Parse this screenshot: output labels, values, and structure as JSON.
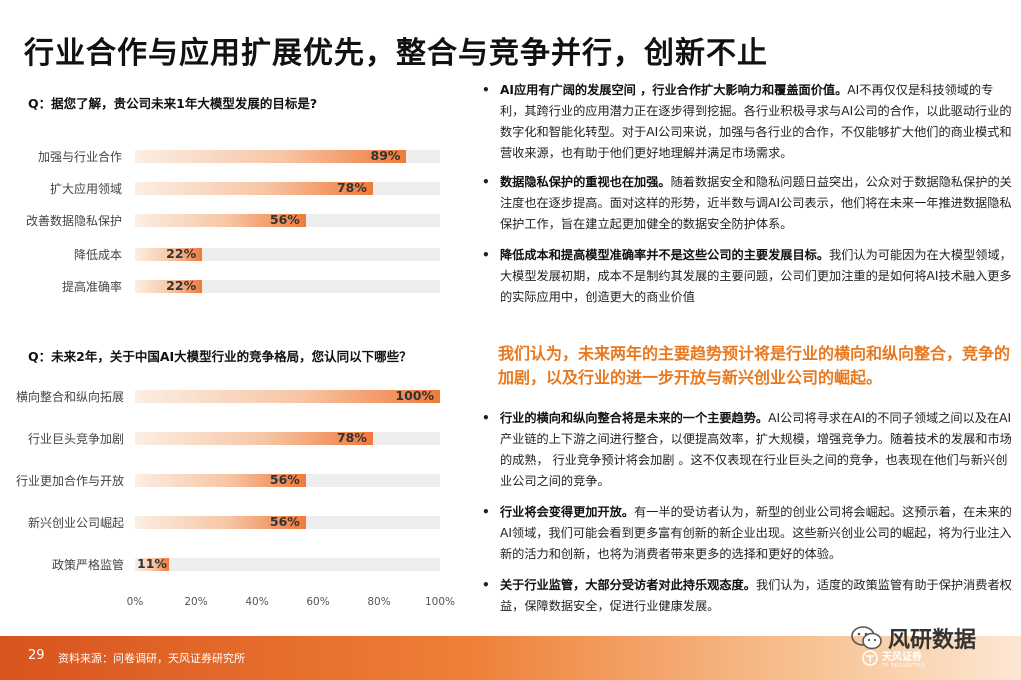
{
  "title": "行业合作与应用扩展优先，整合与竞争并行，创新不止",
  "chart_data": [
    {
      "type": "bar",
      "title": "Q：据您了解，贵公司未来1年大模型发展的目标是?",
      "categories": [
        "加强与行业合作",
        "扩大应用领域",
        "改善数据隐私保护",
        "降低成本",
        "提高准确率"
      ],
      "values": [
        89,
        78,
        56,
        22,
        22
      ],
      "value_labels": [
        "89%",
        "78%",
        "56%",
        "22%",
        "22%"
      ],
      "xlim": [
        0,
        100
      ]
    },
    {
      "type": "bar",
      "title": "Q：未来2年，关于中国AI大模型行业的竞争格局，您认同以下哪些？",
      "categories": [
        "横向整合和纵向拓展",
        "行业巨头竞争加剧",
        "行业更加合作与开放",
        "新兴创业公司崛起",
        "政策严格监管"
      ],
      "values": [
        100,
        78,
        56,
        56,
        11
      ],
      "value_labels": [
        "100%",
        "78%",
        "56%",
        "56%",
        "11%"
      ],
      "xlim": [
        0,
        100
      ],
      "xticks": [
        "0%",
        "20%",
        "40%",
        "60%",
        "80%",
        "100%"
      ]
    }
  ],
  "bullets_top": [
    {
      "bold": "AI应用有广阔的发展空间 ，行业合作扩大影响力和覆盖面价值。",
      "text": "AI不再仅仅是科技领域的专利，其跨行业的应用潜力正在逐步得到挖掘。各行业积极寻求与AI公司的合作，以此驱动行业的数字化和智能化转型。对于AI公司来说，加强与各行业的合作，不仅能够扩大他们的商业模式和营收来源，也有助于他们更好地理解并满足市场需求。"
    },
    {
      "bold": "数据隐私保护的重视也在加强。",
      "text": "随着数据安全和隐私问题日益突出，公众对于数据隐私保护的关注度也在逐步提高。面对这样的形势，近半数与调AI公司表示，他们将在未来一年推进数据隐私保护工作，旨在建立起更加健全的数据安全防护体系。"
    },
    {
      "bold": "降低成本和提高模型准确率并不是这些公司的主要发展目标。",
      "text": "我们认为可能因为在大模型领域，大模型发展初期，成本不是制约其发展的主要问题，公司们更加注重的是如何将AI技术融入更多的实际应用中，创造更大的商业价值"
    }
  ],
  "highlight": "我们认为，未来两年的主要趋势预计将是行业的横向和纵向整合，竞争的加剧，以及行业的进一步开放与新兴创业公司的崛起。",
  "bullets_bottom": [
    {
      "bold": "行业的横向和纵向整合将是未来的一个主要趋势。",
      "text": "AI公司将寻求在AI的不同子领域之间以及在AI产业链的上下游之间进行整合，以便提高效率，扩大规模，增强竞争力。随着技术的发展和市场的成熟， 行业竞争预计将会加剧 。这不仅表现在行业巨头之间的竞争，也表现在他们与新兴创业公司之间的竞争。"
    },
    {
      "bold": "行业将会变得更加开放。",
      "text": "有一半的受访者认为，新型的创业公司将会崛起。这预示着，在未来的AI领域，我们可能会看到更多富有创新的新企业出现。这些新兴创业公司的崛起，将为行业注入新的活力和创新，也将为消费者带来更多的选择和更好的体验。"
    },
    {
      "bold": "关于行业监管，大部分受访者对此持乐观态度。",
      "text": "我们认为，适度的政策监管有助于保护消费者权益，保障数据安全，促进行业健康发展。"
    }
  ],
  "footer": {
    "page_number": "29",
    "source": "资料来源：问卷调研，天风证券研究所"
  },
  "watermark": {
    "name": "风研数据",
    "icon": "wechat-icon"
  },
  "logo": {
    "name": "天风证券",
    "sub": "TF SECURITIES"
  },
  "colors": {
    "accent": "#ef7a3c",
    "highlight": "#e8791e",
    "track": "#eeeeee"
  }
}
